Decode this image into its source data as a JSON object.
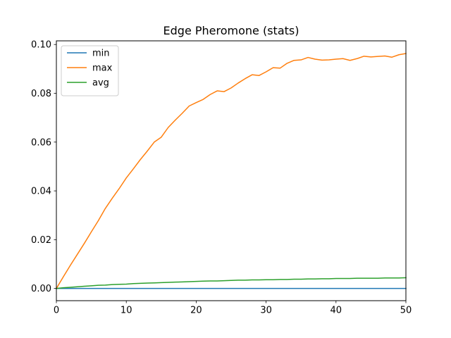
{
  "chart_data": {
    "type": "line",
    "title": "Edge Pheromone (stats)",
    "xlabel": "",
    "ylabel": "",
    "xlim": [
      0,
      50
    ],
    "ylim": [
      -0.005,
      0.1015
    ],
    "x_ticks": [
      0,
      10,
      20,
      30,
      40,
      50
    ],
    "x_tick_labels": [
      "0",
      "10",
      "20",
      "30",
      "40",
      "50"
    ],
    "y_ticks": [
      0.0,
      0.02,
      0.04,
      0.06,
      0.08,
      0.1
    ],
    "y_tick_labels": [
      "0.00",
      "0.02",
      "0.04",
      "0.06",
      "0.08",
      "0.10"
    ],
    "grid": false,
    "legend": "top-left",
    "x": [
      0,
      1,
      2,
      3,
      4,
      5,
      6,
      7,
      8,
      9,
      10,
      11,
      12,
      13,
      14,
      15,
      16,
      17,
      18,
      19,
      20,
      21,
      22,
      23,
      24,
      25,
      26,
      27,
      28,
      29,
      30,
      31,
      32,
      33,
      34,
      35,
      36,
      37,
      38,
      39,
      40,
      41,
      42,
      43,
      44,
      45,
      46,
      47,
      48,
      49,
      50
    ],
    "series": [
      {
        "name": "min",
        "color": "#1f77b4",
        "values": [
          0,
          0,
          0,
          0,
          0,
          0,
          0,
          0,
          0,
          0,
          0,
          0,
          0,
          0,
          0,
          0,
          0,
          0,
          0,
          0,
          0,
          0,
          0,
          0,
          0,
          0,
          0,
          0,
          0,
          0,
          0,
          0,
          0,
          0,
          0,
          0,
          0,
          0,
          0,
          0,
          0,
          0,
          0,
          0,
          0,
          0,
          0,
          0,
          0,
          0,
          0
        ]
      },
      {
        "name": "max",
        "color": "#ff7f0e",
        "values": [
          0,
          0.0048,
          0.0095,
          0.014,
          0.0185,
          0.0232,
          0.0278,
          0.0328,
          0.037,
          0.041,
          0.0453,
          0.049,
          0.0528,
          0.0563,
          0.06,
          0.062,
          0.066,
          0.069,
          0.0718,
          0.0748,
          0.0762,
          0.0775,
          0.0795,
          0.081,
          0.0807,
          0.0822,
          0.0842,
          0.086,
          0.0876,
          0.0873,
          0.0888,
          0.0905,
          0.0903,
          0.0923,
          0.0935,
          0.0937,
          0.0947,
          0.094,
          0.0936,
          0.0937,
          0.094,
          0.0942,
          0.0935,
          0.0942,
          0.0952,
          0.0949,
          0.0951,
          0.0953,
          0.0948,
          0.0958,
          0.0963
        ]
      },
      {
        "name": "avg",
        "color": "#2ca02c",
        "values": [
          0,
          0.0003,
          0.0005,
          0.0007,
          0.0009,
          0.0011,
          0.0013,
          0.0014,
          0.0016,
          0.0017,
          0.0018,
          0.002,
          0.0021,
          0.0022,
          0.0023,
          0.0024,
          0.0025,
          0.0026,
          0.0027,
          0.0028,
          0.0029,
          0.003,
          0.0031,
          0.0031,
          0.0032,
          0.0033,
          0.0034,
          0.0034,
          0.0035,
          0.0035,
          0.0036,
          0.0036,
          0.0037,
          0.0037,
          0.0038,
          0.0038,
          0.0039,
          0.0039,
          0.004,
          0.004,
          0.0041,
          0.0041,
          0.0041,
          0.0042,
          0.0042,
          0.0042,
          0.0042,
          0.0043,
          0.0043,
          0.0043,
          0.0044
        ]
      }
    ]
  }
}
